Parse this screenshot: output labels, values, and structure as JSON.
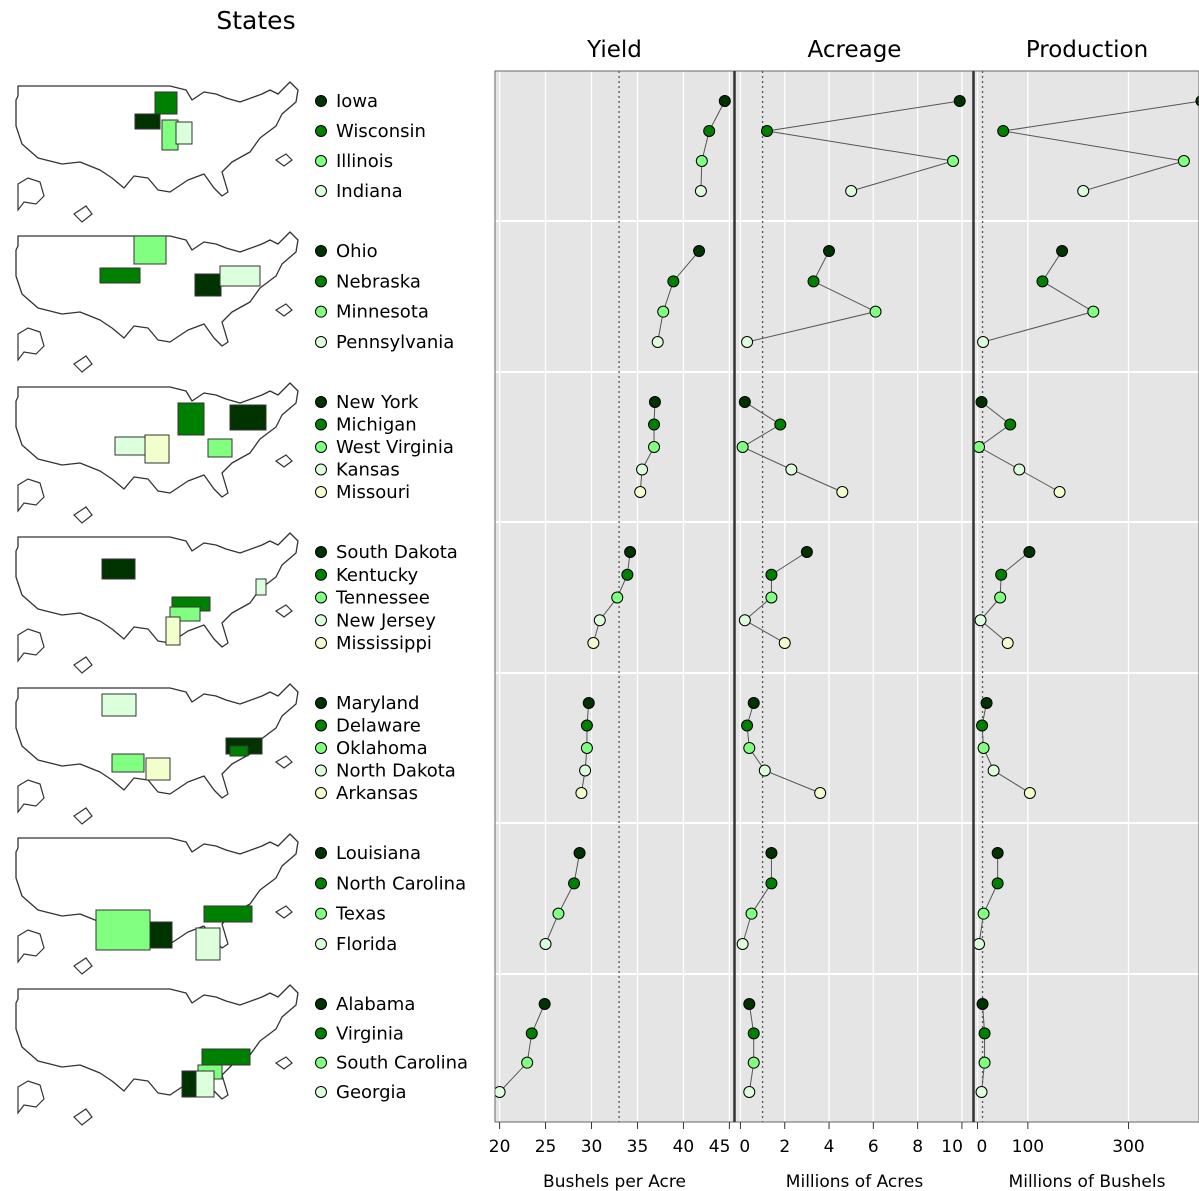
{
  "chart_data": {
    "type": "scatter",
    "title": "States",
    "panels": [
      {
        "name": "Yield",
        "xlabel": "Bushels per Acre",
        "ticks": [
          20,
          25,
          30,
          35,
          40,
          45
        ],
        "xlim": [
          19.5,
          45.5
        ],
        "reference": 33.0,
        "key": "yield"
      },
      {
        "name": "Acreage",
        "xlabel": "Millions of Acres",
        "ticks": [
          0,
          2,
          4,
          6,
          8,
          10
        ],
        "xlim": [
          -0.2,
          10.5
        ],
        "reference": 1.0,
        "key": "acreage"
      },
      {
        "name": "Production",
        "xlabel": "Millions of Bushels",
        "ticks": [
          0,
          100,
          300
        ],
        "xlim": [
          -5,
          440
        ],
        "reference": 10.0,
        "key": "production"
      }
    ],
    "color_scale": [
      "#003300",
      "#008000",
      "#80ff80",
      "#dcffdc",
      "#f2ffcc"
    ],
    "groups": [
      {
        "states": [
          {
            "name": "Iowa",
            "yield": 44.5,
            "acreage": 9.9,
            "production": 445
          },
          {
            "name": "Wisconsin",
            "yield": 42.8,
            "acreage": 1.2,
            "production": 51
          },
          {
            "name": "Illinois",
            "yield": 42.0,
            "acreage": 9.6,
            "production": 410
          },
          {
            "name": "Indiana",
            "yield": 41.9,
            "acreage": 5.0,
            "production": 210
          }
        ]
      },
      {
        "states": [
          {
            "name": "Ohio",
            "yield": 41.7,
            "acreage": 4.0,
            "production": 168
          },
          {
            "name": "Nebraska",
            "yield": 38.9,
            "acreage": 3.3,
            "production": 129
          },
          {
            "name": "Minnesota",
            "yield": 37.8,
            "acreage": 6.1,
            "production": 230
          },
          {
            "name": "Pennsylvania",
            "yield": 37.2,
            "acreage": 0.3,
            "production": 11
          }
        ]
      },
      {
        "states": [
          {
            "name": "New York",
            "yield": 36.9,
            "acreage": 0.2,
            "production": 8
          },
          {
            "name": "Michigan",
            "yield": 36.8,
            "acreage": 1.8,
            "production": 65
          },
          {
            "name": "West Virginia",
            "yield": 36.8,
            "acreage": 0.1,
            "production": 3
          },
          {
            "name": "Kansas",
            "yield": 35.5,
            "acreage": 2.3,
            "production": 83
          },
          {
            "name": "Missouri",
            "yield": 35.3,
            "acreage": 4.6,
            "production": 163
          }
        ]
      },
      {
        "states": [
          {
            "name": "South Dakota",
            "yield": 34.2,
            "acreage": 3.0,
            "production": 103
          },
          {
            "name": "Kentucky",
            "yield": 33.9,
            "acreage": 1.4,
            "production": 47
          },
          {
            "name": "Tennessee",
            "yield": 32.8,
            "acreage": 1.4,
            "production": 45
          },
          {
            "name": "New Jersey",
            "yield": 30.9,
            "acreage": 0.2,
            "production": 6
          },
          {
            "name": "Mississippi",
            "yield": 30.2,
            "acreage": 2.0,
            "production": 60
          }
        ]
      },
      {
        "states": [
          {
            "name": "Maryland",
            "yield": 29.7,
            "acreage": 0.6,
            "production": 18
          },
          {
            "name": "Delaware",
            "yield": 29.5,
            "acreage": 0.3,
            "production": 9
          },
          {
            "name": "Oklahoma",
            "yield": 29.5,
            "acreage": 0.4,
            "production": 12
          },
          {
            "name": "North Dakota",
            "yield": 29.3,
            "acreage": 1.1,
            "production": 32
          },
          {
            "name": "Arkansas",
            "yield": 28.9,
            "acreage": 3.6,
            "production": 104
          }
        ]
      },
      {
        "states": [
          {
            "name": "Louisiana",
            "yield": 28.7,
            "acreage": 1.4,
            "production": 40
          },
          {
            "name": "North Carolina",
            "yield": 28.1,
            "acreage": 1.4,
            "production": 40
          },
          {
            "name": "Texas",
            "yield": 26.4,
            "acreage": 0.5,
            "production": 12
          },
          {
            "name": "Florida",
            "yield": 25.0,
            "acreage": 0.1,
            "production": 3
          }
        ]
      },
      {
        "states": [
          {
            "name": "Alabama",
            "yield": 24.9,
            "acreage": 0.4,
            "production": 10
          },
          {
            "name": "Virginia",
            "yield": 23.5,
            "acreage": 0.6,
            "production": 14
          },
          {
            "name": "South Carolina",
            "yield": 23.0,
            "acreage": 0.6,
            "production": 14
          },
          {
            "name": "Georgia",
            "yield": 20.0,
            "acreage": 0.4,
            "production": 8
          }
        ]
      }
    ]
  }
}
